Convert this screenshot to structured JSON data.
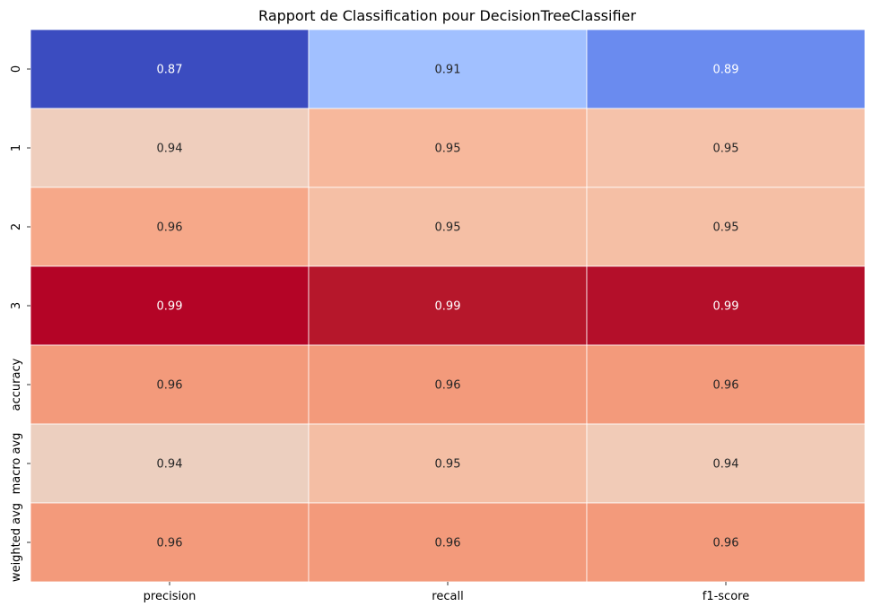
{
  "chart_data": {
    "type": "heatmap",
    "title": "Rapport de Classification pour DecisionTreeClassifier",
    "xlabel": "",
    "ylabel": "",
    "columns": [
      "precision",
      "recall",
      "f1-score"
    ],
    "rows": [
      "0",
      "1",
      "2",
      "3",
      "accuracy",
      "macro avg",
      "weighted avg"
    ],
    "values": [
      [
        0.87,
        0.91,
        0.89
      ],
      [
        0.94,
        0.95,
        0.95
      ],
      [
        0.96,
        0.95,
        0.95
      ],
      [
        0.99,
        0.99,
        0.99
      ],
      [
        0.96,
        0.96,
        0.96
      ],
      [
        0.94,
        0.95,
        0.94
      ],
      [
        0.96,
        0.96,
        0.96
      ]
    ],
    "value_format": "0.00",
    "colormap": "coolwarm",
    "colorbar": false,
    "cell_border_color": "#ffffff",
    "cell_colors": [
      [
        "#3b4cc0",
        "#a1c0ff",
        "#6a8bef"
      ],
      [
        "#efcebd",
        "#f7b89c",
        "#f5c2aa"
      ],
      [
        "#f6a889",
        "#f5bfa5",
        "#f5bfa5"
      ],
      [
        "#b40426",
        "#b6172b",
        "#b40f2a"
      ],
      [
        "#f39a7b",
        "#f39a7b",
        "#f39a7b"
      ],
      [
        "#eccfbf",
        "#f4bea4",
        "#f1cbb7"
      ],
      [
        "#f39a7b",
        "#f39a7b",
        "#f39a7b"
      ]
    ],
    "annotation_colors": [
      [
        "#ffffff",
        "#262626",
        "#ffffff"
      ],
      [
        "#262626",
        "#262626",
        "#262626"
      ],
      [
        "#262626",
        "#262626",
        "#262626"
      ],
      [
        "#ffffff",
        "#ffffff",
        "#ffffff"
      ],
      [
        "#262626",
        "#262626",
        "#262626"
      ],
      [
        "#262626",
        "#262626",
        "#262626"
      ],
      [
        "#262626",
        "#262626",
        "#262626"
      ]
    ]
  }
}
